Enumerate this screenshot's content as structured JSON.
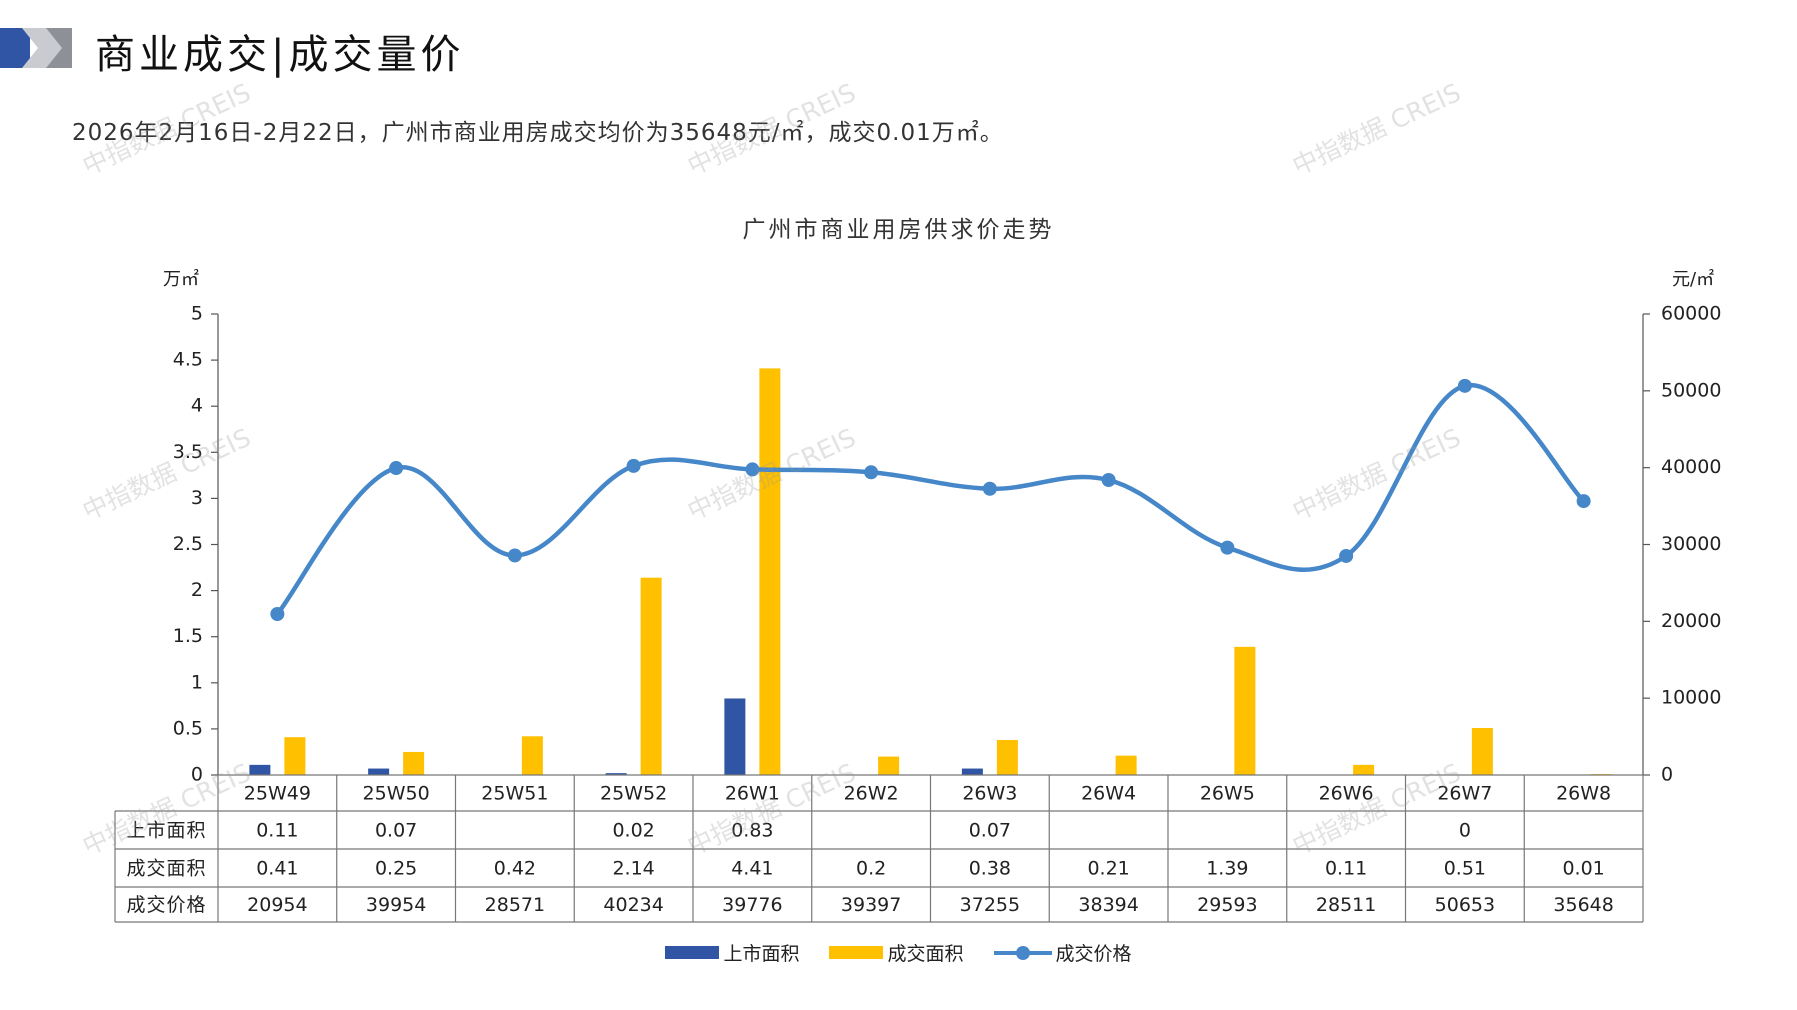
{
  "header": {
    "title": "商业成交|成交量价",
    "summary": "2026年2月16日-2月22日，广州市商业用房成交均价为35648元/㎡，成交0.01万㎡。"
  },
  "watermark_text": "中指数据 CREIS",
  "colors": {
    "listed_bar": "#2f55a4",
    "traded_bar": "#ffc000",
    "price_line": "#4587c9",
    "logo_blue": "#2f55a4",
    "logo_gray": "#9a9ca3"
  },
  "chart_data": {
    "type": "bar",
    "title": "广州市商业用房供求价走势",
    "left_unit": "万㎡",
    "right_unit": "元/㎡",
    "ylim_left": [
      0,
      5
    ],
    "ylim_right": [
      0,
      60000
    ],
    "left_ticks": [
      "0",
      "0.5",
      "1",
      "1.5",
      "2",
      "2.5",
      "3",
      "3.5",
      "4",
      "4.5",
      "5"
    ],
    "right_ticks": [
      "0",
      "10000",
      "20000",
      "30000",
      "40000",
      "50000",
      "60000"
    ],
    "categories": [
      "25W49",
      "25W50",
      "25W51",
      "25W52",
      "26W1",
      "26W2",
      "26W3",
      "26W4",
      "26W5",
      "26W6",
      "26W7",
      "26W8"
    ],
    "series": [
      {
        "name": "上市面积",
        "type": "bar",
        "axis": "left",
        "values": [
          0.11,
          0.07,
          null,
          0.02,
          0.83,
          null,
          0.07,
          null,
          null,
          null,
          0,
          null
        ],
        "labels": [
          "0.11",
          "0.07",
          "",
          "0.02",
          "0.83",
          "",
          "0.07",
          "",
          "",
          "",
          "0",
          ""
        ]
      },
      {
        "name": "成交面积",
        "type": "bar",
        "axis": "left",
        "values": [
          0.41,
          0.25,
          0.42,
          2.14,
          4.41,
          0.2,
          0.38,
          0.21,
          1.39,
          0.11,
          0.51,
          0.01
        ],
        "labels": [
          "0.41",
          "0.25",
          "0.42",
          "2.14",
          "4.41",
          "0.2",
          "0.38",
          "0.21",
          "1.39",
          "0.11",
          "0.51",
          "0.01"
        ]
      },
      {
        "name": "成交价格",
        "type": "line",
        "axis": "right",
        "values": [
          20954,
          39954,
          28571,
          40234,
          39776,
          39397,
          37255,
          38394,
          29593,
          28511,
          50653,
          35648
        ],
        "labels": [
          "20954",
          "39954",
          "28571",
          "40234",
          "39776",
          "39397",
          "37255",
          "38394",
          "29593",
          "28511",
          "50653",
          "35648"
        ]
      }
    ],
    "data_table": true,
    "legend_position": "bottom"
  }
}
